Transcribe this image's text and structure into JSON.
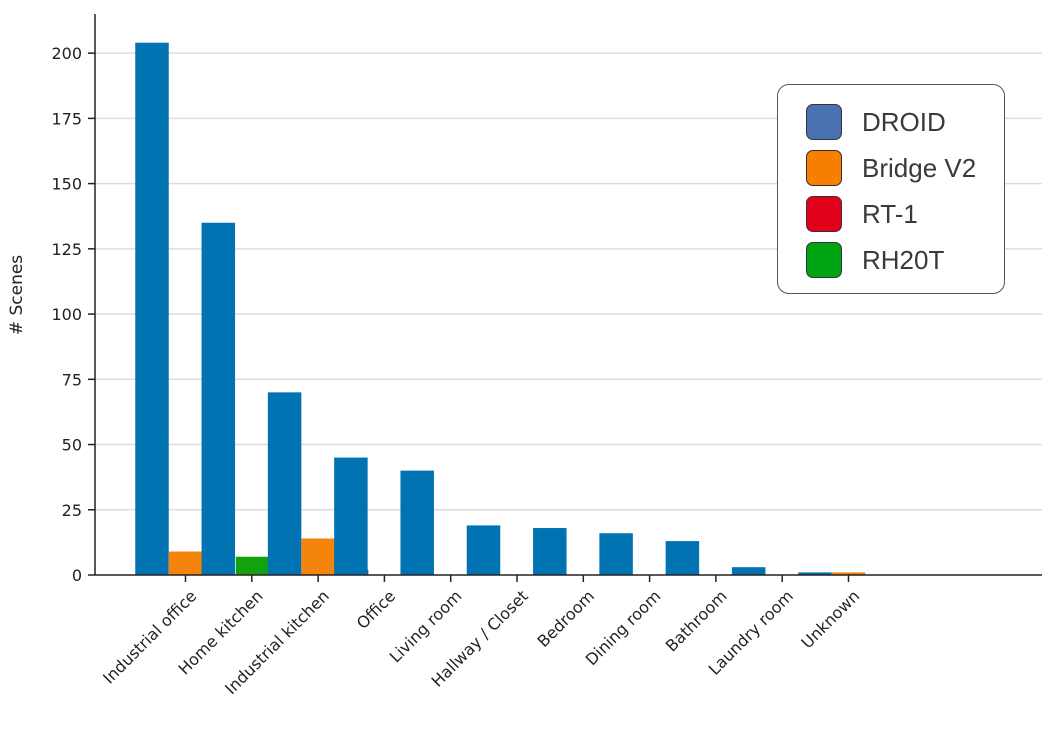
{
  "chart_data": {
    "type": "bar",
    "title": "",
    "xlabel": "",
    "ylabel": "# Scenes",
    "ylim": [
      0,
      215
    ],
    "yticks": [
      0,
      25,
      50,
      75,
      100,
      125,
      150,
      175,
      200
    ],
    "grid": "horizontal",
    "legend_position": "top-right",
    "categories": [
      "Industrial office",
      "Home kitchen",
      "Industrial kitchen",
      "Office",
      "Living room",
      "Hallway / Closet",
      "Bedroom",
      "Dining room",
      "Bathroom",
      "Laundry room",
      "Unknown"
    ],
    "series": [
      {
        "name": "DROID",
        "color": "#0173b2",
        "legend_color": "#4a72b0",
        "values": [
          204,
          135,
          70,
          45,
          40,
          19,
          18,
          16,
          13,
          3,
          1
        ]
      },
      {
        "name": "Bridge V2",
        "color": "#f5840c",
        "legend_color": "#f77f00",
        "values": [
          9,
          0,
          14,
          0,
          0,
          0,
          0,
          0,
          0,
          0,
          1
        ]
      },
      {
        "name": "RT-1",
        "color": "#d40f1c",
        "legend_color": "#e3001b",
        "values": [
          0,
          0,
          2,
          0,
          0,
          0,
          0,
          0,
          0,
          0,
          0
        ]
      },
      {
        "name": "RH20T",
        "color": "#13a10e",
        "legend_color": "#00a513",
        "values": [
          7,
          0,
          0,
          0,
          0,
          0,
          0,
          0,
          0,
          0,
          0
        ]
      }
    ]
  }
}
